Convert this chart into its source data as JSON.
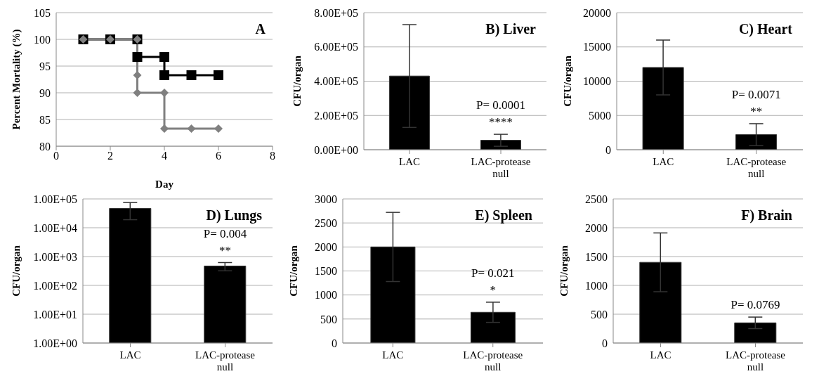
{
  "chart_data": [
    {
      "type": "line",
      "title": "A",
      "xlabel": "Day",
      "ylabel": "Percent Mortality (%)",
      "xlim": [
        0,
        8
      ],
      "xticks": [
        0,
        2,
        4,
        6,
        8
      ],
      "ylim": [
        80,
        105
      ],
      "yticks": [
        80,
        85,
        90,
        95,
        100,
        105
      ],
      "grid": "y",
      "series": [
        {
          "color": "#000000",
          "marker": "square",
          "x": [
            1,
            2,
            3,
            3,
            4,
            4,
            5,
            6
          ],
          "values": [
            100,
            100,
            100,
            96.7,
            96.7,
            93.3,
            93.3,
            93.3
          ]
        },
        {
          "color": "#808080",
          "marker": "diamond",
          "x": [
            1,
            2,
            3,
            3,
            3,
            4,
            4,
            5,
            6
          ],
          "values": [
            100,
            100,
            100,
            93.3,
            90,
            90,
            83.3,
            83.3,
            83.3
          ]
        }
      ]
    },
    {
      "type": "bar",
      "title": "B) Liver",
      "ylabel": "CFU/organ",
      "categories": [
        "LAC",
        "LAC-protease null"
      ],
      "values": [
        430000,
        55000
      ],
      "errors": [
        300000,
        35000
      ],
      "color": "#000000",
      "ylim": [
        0,
        800000
      ],
      "yticks": [
        {
          "value": 0,
          "label": "0.00E+00"
        },
        {
          "value": 200000,
          "label": "2.00E+05"
        },
        {
          "value": 400000,
          "label": "4.00E+05"
        },
        {
          "value": 600000,
          "label": "6.00E+05"
        },
        {
          "value": 800000,
          "label": "8.00E+05"
        }
      ],
      "grid": "y",
      "annotations": [
        "P= 0.0001",
        "****"
      ]
    },
    {
      "type": "bar",
      "title": "C) Heart",
      "ylabel": "CFU/organ",
      "categories": [
        "LAC",
        "LAC-protease null"
      ],
      "values": [
        12000,
        2200
      ],
      "errors": [
        4000,
        1600
      ],
      "color": "#000000",
      "ylim": [
        0,
        20000
      ],
      "yticks": [
        0,
        5000,
        10000,
        15000,
        20000
      ],
      "grid": "y",
      "annotations": [
        "P= 0.0071",
        "**"
      ]
    },
    {
      "type": "bar",
      "title": "D) Lungs",
      "ylabel": "CFU/organ",
      "categories": [
        "LAC",
        "LAC-protease null"
      ],
      "values": [
        47000,
        470
      ],
      "errors": [
        28000,
        150
      ],
      "color": "#000000",
      "log": "y",
      "ylim": [
        1,
        100000
      ],
      "yticks": [
        {
          "value": 1,
          "label": "1.00E+00"
        },
        {
          "value": 10,
          "label": "1.00E+01"
        },
        {
          "value": 100,
          "label": "1.00E+02"
        },
        {
          "value": 1000,
          "label": "1.00E+03"
        },
        {
          "value": 10000,
          "label": "1.00E+04"
        },
        {
          "value": 100000,
          "label": "1.00E+05"
        }
      ],
      "grid": "y",
      "annotations": [
        "P= 0.004",
        "**"
      ]
    },
    {
      "type": "bar",
      "title": "E) Spleen",
      "ylabel": "CFU/organ",
      "categories": [
        "LAC",
        "LAC-protease null"
      ],
      "values": [
        2000,
        640
      ],
      "errors": [
        720,
        210
      ],
      "color": "#000000",
      "ylim": [
        0,
        3000
      ],
      "yticks": [
        0,
        500,
        1000,
        1500,
        2000,
        2500,
        3000
      ],
      "grid": "y",
      "annotations": [
        "P= 0.021",
        "*"
      ]
    },
    {
      "type": "bar",
      "title": "F) Brain",
      "ylabel": "CFU/organ",
      "categories": [
        "LAC",
        "LAC-protease null"
      ],
      "values": [
        1400,
        350
      ],
      "errors": [
        510,
        100
      ],
      "color": "#000000",
      "ylim": [
        0,
        2500
      ],
      "yticks": [
        0,
        500,
        1000,
        1500,
        2000,
        2500
      ],
      "grid": "y",
      "annotations": [
        "P= 0.0769"
      ]
    }
  ]
}
